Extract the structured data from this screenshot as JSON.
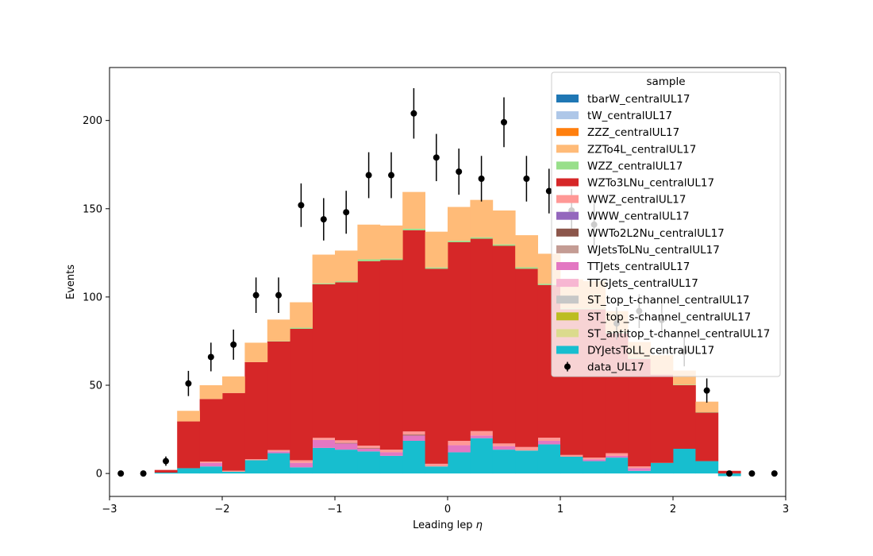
{
  "chart_data": {
    "type": "bar",
    "stacked": true,
    "xlabel_text": "Leading lep ",
    "xlabel_symbol": "η",
    "ylabel": "Events",
    "xlim": [
      -3,
      3
    ],
    "ylim": [
      -13,
      230
    ],
    "x_ticks": [
      -3,
      -2,
      -1,
      0,
      1,
      2,
      3
    ],
    "x_tick_labels": [
      "−3",
      "−2",
      "−1",
      "0",
      "1",
      "2",
      "3"
    ],
    "y_ticks": [
      0,
      50,
      100,
      150,
      200
    ],
    "y_tick_labels": [
      "0",
      "50",
      "100",
      "150",
      "200"
    ],
    "grid": false,
    "legend": {
      "title": "sample",
      "placement": "top-right"
    },
    "bin_edges": [
      -2.6,
      -2.4,
      -2.2,
      -2.0,
      -1.8,
      -1.6,
      -1.4,
      -1.2,
      -1.0,
      -0.8,
      -0.6,
      -0.4,
      -0.2,
      0.0,
      0.2,
      0.4,
      0.6,
      0.8,
      1.0,
      1.2,
      1.4,
      1.6,
      1.8,
      2.0,
      2.2,
      2.4,
      2.6
    ],
    "series": [
      {
        "name": "DYJetsToLL_centralUL17",
        "color": "#17becf",
        "values": [
          0.5,
          3,
          4,
          1,
          7.5,
          11.5,
          3.5,
          14.5,
          13.5,
          12.5,
          10,
          18.5,
          4,
          12,
          20,
          13.5,
          13,
          16.5,
          9.5,
          7,
          9,
          1.5,
          6,
          14,
          7,
          -1.5
        ]
      },
      {
        "name": "ST_antitop_t-channel_centralUL17",
        "color": "#dbdb8d",
        "values": [
          0,
          0,
          0,
          0,
          0,
          0,
          0,
          0,
          0,
          0,
          0,
          0,
          0,
          0,
          0,
          0,
          0,
          0,
          0,
          0,
          0,
          0,
          0,
          0,
          0,
          0
        ]
      },
      {
        "name": "ST_top_s-channel_centralUL17",
        "color": "#bcbd22",
        "values": [
          0,
          0,
          0,
          0,
          0,
          0,
          0,
          0,
          0,
          0,
          0,
          0,
          0,
          0,
          0,
          0,
          0,
          0,
          0,
          0,
          0,
          0,
          0,
          0,
          0,
          0
        ]
      },
      {
        "name": "ST_top_t-channel_centralUL17",
        "color": "#c7c7c7",
        "values": [
          0,
          0,
          0,
          0,
          0,
          0,
          0,
          0,
          0,
          0,
          0,
          0,
          0,
          0,
          0,
          0,
          0,
          0,
          0,
          0,
          0,
          0,
          0,
          0,
          0,
          0
        ]
      },
      {
        "name": "TTGJets_centralUL17",
        "color": "#f7b6d2",
        "values": [
          0,
          0,
          0,
          0,
          0,
          0,
          0,
          0,
          0,
          0,
          0,
          0,
          0,
          0,
          0,
          0,
          0,
          0,
          0,
          0,
          0,
          0,
          0,
          0,
          0,
          0
        ]
      },
      {
        "name": "TTJets_centralUL17",
        "color": "#e377c2",
        "values": [
          0,
          0,
          2,
          0,
          0,
          1,
          2.5,
          4.5,
          3.5,
          1.5,
          2,
          3,
          0,
          4,
          1.5,
          2,
          0,
          2,
          0,
          1,
          1,
          1.5,
          0,
          0,
          0,
          0
        ]
      },
      {
        "name": "WJetsToLNu_centralUL17",
        "color": "#c49c94",
        "values": [
          0,
          0,
          0,
          0,
          0,
          0,
          0,
          0,
          0,
          0,
          0,
          0,
          0,
          0,
          0,
          0,
          0,
          0,
          0,
          0,
          0,
          0,
          0,
          0,
          0,
          0
        ]
      },
      {
        "name": "WWTo2L2Nu_centralUL17",
        "color": "#8c564b",
        "values": [
          0,
          0,
          0,
          0,
          0,
          0,
          0,
          0,
          0.3,
          0.3,
          0,
          0.5,
          0,
          0,
          0,
          0,
          0,
          0,
          0,
          0,
          0,
          0,
          0,
          0,
          0,
          0
        ]
      },
      {
        "name": "WWW_centralUL17",
        "color": "#9467bd",
        "values": [
          0,
          0,
          0,
          0,
          0,
          0,
          0,
          0,
          0,
          0,
          0,
          0,
          0,
          0,
          0,
          0,
          0,
          0,
          0,
          0,
          0,
          0,
          0,
          0,
          0,
          0
        ]
      },
      {
        "name": "WWZ_centralUL17",
        "color": "#ff9896",
        "values": [
          0,
          0,
          0.7,
          0.6,
          0.6,
          0.8,
          1.5,
          1.2,
          1.5,
          1.5,
          1.5,
          1.8,
          1.5,
          2.5,
          2.5,
          1.5,
          2,
          1.8,
          1,
          1,
          1.5,
          1,
          0,
          0,
          0,
          0
        ]
      },
      {
        "name": "WZTo3LNu_centralUL17",
        "color": "#d62728",
        "values": [
          1.5,
          26.5,
          35.5,
          44,
          55,
          61.5,
          74.5,
          87,
          89.5,
          104.5,
          107.5,
          114,
          110.5,
          112.5,
          109,
          112,
          101,
          86.5,
          82.5,
          84,
          68,
          61,
          50,
          36,
          27.5,
          1.5
        ]
      },
      {
        "name": "WZZ_centralUL17",
        "color": "#98df8a",
        "values": [
          0,
          0,
          0,
          0,
          0,
          0.2,
          0.6,
          0.5,
          0.6,
          1,
          0.7,
          0.9,
          0.7,
          0.8,
          0.8,
          0.8,
          0.8,
          0.7,
          0.5,
          0.5,
          0.5,
          0.5,
          0,
          0.3,
          0.2,
          0
        ]
      },
      {
        "name": "ZZTo4L_centralUL17",
        "color": "#ffbb78",
        "values": [
          0,
          6,
          7.8,
          9.4,
          11,
          12.2,
          14.4,
          16.3,
          17.4,
          19.7,
          18.8,
          20.8,
          20.3,
          19.2,
          21.2,
          19.2,
          18.2,
          17,
          16.5,
          15.5,
          12,
          9,
          11,
          8,
          6,
          0
        ]
      },
      {
        "name": "ZZZ_centralUL17",
        "color": "#ff7f0e",
        "values": [
          0,
          0,
          0,
          0,
          0,
          0,
          0,
          0,
          0,
          0,
          0,
          0,
          0,
          0,
          0,
          0,
          0,
          0,
          0,
          0,
          0,
          0,
          0,
          0,
          0,
          0
        ]
      },
      {
        "name": "tW_centralUL17",
        "color": "#aec7e8",
        "values": [
          0,
          0,
          0,
          0,
          0,
          0,
          0,
          0,
          0,
          0,
          0,
          0,
          0,
          0,
          0,
          0,
          0,
          0,
          0,
          0,
          0,
          0,
          0,
          0,
          0,
          0
        ]
      },
      {
        "name": "tbarW_centralUL17",
        "color": "#1f77b4",
        "values": [
          0,
          0,
          0,
          0,
          0,
          0,
          0,
          0,
          0,
          0,
          0,
          0,
          0,
          0,
          0,
          0,
          0,
          0,
          0,
          0,
          0,
          0,
          0,
          0,
          0,
          0
        ]
      }
    ],
    "data_points": {
      "name": "data_UL17",
      "color": "#000000",
      "x": [
        -2.9,
        -2.7,
        -2.5,
        -2.3,
        -2.1,
        -1.9,
        -1.7,
        -1.5,
        -1.3,
        -1.1,
        -0.9,
        -0.7,
        -0.5,
        -0.3,
        -0.1,
        0.1,
        0.3,
        0.5,
        0.7,
        0.9,
        1.1,
        1.3,
        1.5,
        1.7,
        1.9,
        2.1,
        2.3,
        2.5,
        2.7,
        2.9
      ],
      "y": [
        0,
        0,
        7,
        51,
        66,
        73,
        101,
        101,
        152,
        144,
        148,
        169,
        169,
        204,
        179,
        171,
        167,
        199,
        167,
        160,
        149,
        141,
        85,
        92,
        87,
        69,
        47,
        0,
        0,
        0
      ]
    },
    "legend_entries": [
      "tbarW_centralUL17",
      "tW_centralUL17",
      "ZZZ_centralUL17",
      "ZZTo4L_centralUL17",
      "WZZ_centralUL17",
      "WZTo3LNu_centralUL17",
      "WWZ_centralUL17",
      "WWW_centralUL17",
      "WWTo2L2Nu_centralUL17",
      "WJetsToLNu_centralUL17",
      "TTJets_centralUL17",
      "TTGJets_centralUL17",
      "ST_top_t-channel_centralUL17",
      "ST_top_s-channel_centralUL17",
      "ST_antitop_t-channel_centralUL17",
      "DYJetsToLL_centralUL17",
      "data_UL17"
    ]
  }
}
